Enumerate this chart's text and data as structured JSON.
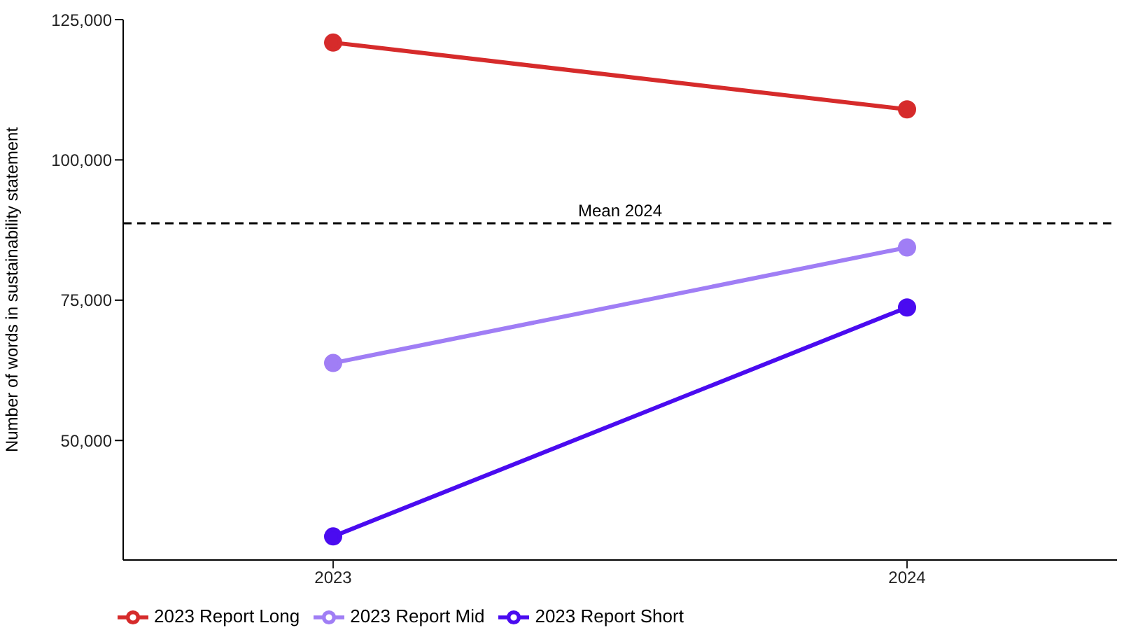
{
  "chart_data": {
    "type": "line",
    "categories": [
      "2023",
      "2024"
    ],
    "ylabel": "Number of words in sustainability statement",
    "ylim": [
      28700,
      125000
    ],
    "yticks": [
      {
        "value": 50000,
        "label": "50,000"
      },
      {
        "value": 75000,
        "label": "75,000"
      },
      {
        "value": 100000,
        "label": "100,000"
      },
      {
        "value": 125000,
        "label": "125,000"
      }
    ],
    "series": [
      {
        "name": "2023 Report Long",
        "color": "#d62b2b",
        "values": [
          120900,
          109000
        ]
      },
      {
        "name": "2023 Report Mid",
        "color": "#a07ef5",
        "values": [
          63800,
          84400
        ]
      },
      {
        "name": "2023 Report Short",
        "color": "#4a0bf0",
        "values": [
          32900,
          73700
        ]
      }
    ],
    "ref_lines": [
      {
        "axis": "y",
        "value": 88700,
        "label": "Mean 2024",
        "line_style": "dashed",
        "color": "#000000"
      }
    ],
    "grid": false,
    "legend": "bottom left",
    "marker": "circle",
    "line_style": "solid"
  }
}
